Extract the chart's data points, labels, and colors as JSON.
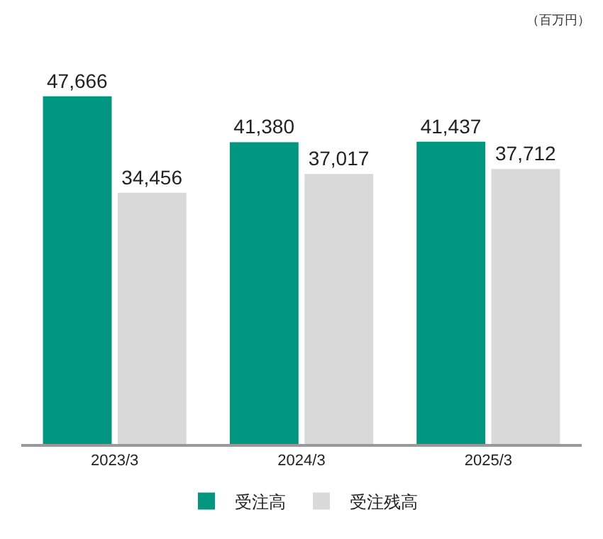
{
  "chart_data": {
    "type": "bar",
    "categories": [
      "2023/3",
      "2024/3",
      "2025/3"
    ],
    "series": [
      {
        "name": "受注高",
        "color": "#009680",
        "values": [
          47666,
          41380,
          41437
        ],
        "value_labels": [
          "47,666",
          "41,380",
          "41,437"
        ]
      },
      {
        "name": "受注残高",
        "color": "#d9d9d9",
        "values": [
          34456,
          37017,
          37712
        ],
        "value_labels": [
          "34,456",
          "37,017",
          "37,712"
        ]
      }
    ],
    "annotations": [
      "（百万円）"
    ],
    "tick_labels": "x",
    "grid": false,
    "legend": "bottom"
  }
}
